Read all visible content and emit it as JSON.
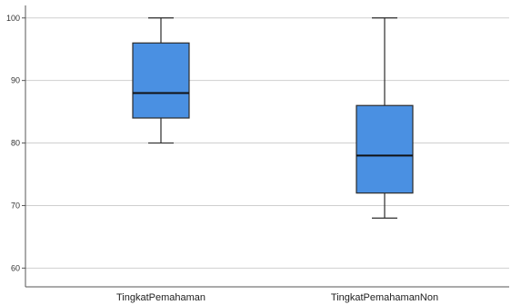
{
  "chart_data": {
    "type": "box",
    "title": "",
    "xlabel": "",
    "ylabel": "",
    "ylim": [
      57,
      102
    ],
    "yticks": [
      60,
      70,
      80,
      90,
      100
    ],
    "grid": true,
    "categories": [
      "TingkatPemahaman",
      "TingkatPemahamanNon"
    ],
    "boxes": [
      {
        "category": "TingkatPemahaman",
        "min": 80,
        "q1": 84,
        "median": 88,
        "q3": 96,
        "max": 100
      },
      {
        "category": "TingkatPemahamanNon",
        "min": 68,
        "q1": 72,
        "median": 78,
        "q3": 86,
        "max": 100
      }
    ],
    "colors": {
      "box_fill": "#4a90e2",
      "box_stroke": "#2b2b2b",
      "grid": "#cfcfcf",
      "axis": "#555555"
    }
  }
}
